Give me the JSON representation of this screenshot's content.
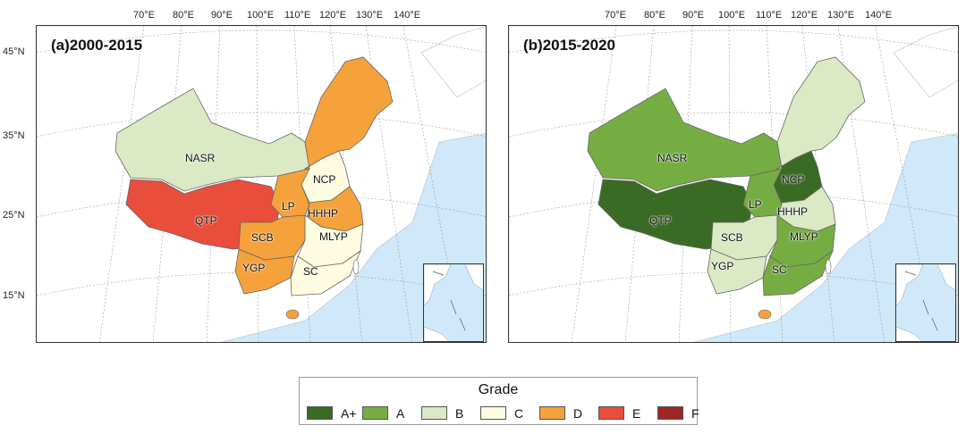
{
  "lon_labels": [
    "70°E",
    "80°E",
    "90°E",
    "100°E",
    "110°E",
    "120°E",
    "130°E",
    "140°E"
  ],
  "lat_labels": [
    "45°N",
    "35°N",
    "25°N",
    "15°N"
  ],
  "colors": {
    "A+": "#3a6b24",
    "A": "#76ad43",
    "B": "#dbe9c4",
    "C": "#fdfbe0",
    "D": "#f5a23c",
    "E": "#e84e3b",
    "F": "#9e2622",
    "ocean": "#cfe9fa",
    "land_other": "#ffffff"
  },
  "panels": [
    {
      "title": "(a)2000-2015",
      "regions": {
        "NASR": {
          "label": "NASR",
          "grade": "B"
        },
        "QTP": {
          "label": "QTP",
          "grade": "E"
        },
        "NCP": {
          "label": "NCP",
          "grade": "C"
        },
        "LP": {
          "label": "LP",
          "grade": "D"
        },
        "HHHP": {
          "label": "HHHP",
          "grade": "D"
        },
        "SCB": {
          "label": "SCB",
          "grade": "D"
        },
        "MLYP": {
          "label": "MLYP",
          "grade": "C"
        },
        "YGP": {
          "label": "YGP",
          "grade": "D"
        },
        "SC": {
          "label": "SC",
          "grade": "C"
        },
        "NE": {
          "label": "",
          "grade": "D"
        }
      }
    },
    {
      "title": "(b)2015-2020",
      "regions": {
        "NASR": {
          "label": "NASR",
          "grade": "A"
        },
        "QTP": {
          "label": "QTP",
          "grade": "A+"
        },
        "NCP": {
          "label": "NCP",
          "grade": "A+"
        },
        "LP": {
          "label": "LP",
          "grade": "A"
        },
        "HHHP": {
          "label": "HHHP",
          "grade": "B"
        },
        "SCB": {
          "label": "SCB",
          "grade": "B"
        },
        "MLYP": {
          "label": "MLYP",
          "grade": "A"
        },
        "YGP": {
          "label": "YGP",
          "grade": "B"
        },
        "SC": {
          "label": "SC",
          "grade": "A"
        },
        "NE": {
          "label": "",
          "grade": "B"
        }
      }
    }
  ],
  "legend": {
    "title": "Grade",
    "items": [
      {
        "grade": "A+",
        "label": "A+"
      },
      {
        "grade": "A",
        "label": "A"
      },
      {
        "grade": "B",
        "label": "B"
      },
      {
        "grade": "C",
        "label": "C"
      },
      {
        "grade": "D",
        "label": "D"
      },
      {
        "grade": "E",
        "label": "E"
      },
      {
        "grade": "F",
        "label": "F"
      }
    ]
  }
}
